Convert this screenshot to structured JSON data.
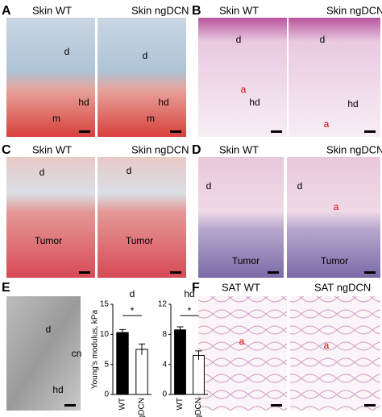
{
  "panels": [
    {
      "letter": "A",
      "titles": [
        "Skin  WT",
        "Skin ngDCN"
      ],
      "labels": [
        "d",
        "hd",
        "m",
        "d",
        "hd",
        "m"
      ]
    },
    {
      "letter": "B",
      "titles": [
        "Skin  WT",
        "Skin ngDCN"
      ],
      "labels": [
        "d",
        "a",
        "hd",
        "d",
        "hd",
        "a"
      ]
    },
    {
      "letter": "C",
      "titles": [
        "Skin  WT",
        "Skin ngDCN"
      ],
      "labels": [
        "d",
        "Tumor",
        "d",
        "Tumor"
      ]
    },
    {
      "letter": "D",
      "titles": [
        "Skin  WT",
        "Skin ngDCN"
      ],
      "labels": [
        "d",
        "Tumor",
        "d",
        "a",
        "Tumor"
      ]
    },
    {
      "letter": "E",
      "labels": [
        "d",
        "cn",
        "hd"
      ]
    },
    {
      "letter": "F",
      "titles": [
        "SAT WT",
        "SAT ngDCN"
      ],
      "labels": [
        "a",
        "a"
      ]
    }
  ],
  "chart_data": [
    {
      "type": "bar",
      "title": "d",
      "y_label": "Young's modulus, kPa",
      "categories": [
        "WT",
        "ngDCN"
      ],
      "values": [
        10.3,
        7.5
      ],
      "errors": [
        0.5,
        0.9
      ],
      "colors": [
        "#000000",
        "#ffffff"
      ],
      "ylim": [
        0,
        15
      ],
      "yticks": [
        0,
        5,
        10,
        15
      ],
      "annotation": "*"
    },
    {
      "type": "bar",
      "title": "hd",
      "categories": [
        "WT",
        "ngDCN"
      ],
      "values": [
        8.6,
        5.2
      ],
      "errors": [
        0.4,
        0.6
      ],
      "colors": [
        "#000000",
        "#ffffff"
      ],
      "ylim": [
        0,
        12
      ],
      "yticks": [
        0,
        4,
        8,
        12
      ],
      "annotation": "*"
    }
  ]
}
